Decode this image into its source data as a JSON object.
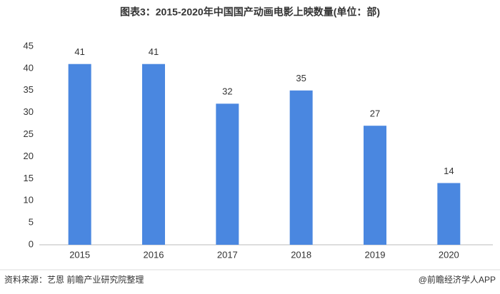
{
  "chart_data": {
    "type": "bar",
    "title": "图表3：2015-2020年中国国产动画电影上映数量(单位：部)",
    "categories": [
      "2015",
      "2016",
      "2017",
      "2018",
      "2019",
      "2020"
    ],
    "values": [
      41,
      41,
      32,
      35,
      27,
      14
    ],
    "color": "#4a87e0",
    "ylim": [
      0,
      45
    ],
    "yticks": [
      0,
      5,
      10,
      15,
      20,
      25,
      30,
      35,
      40,
      45
    ],
    "grid": false,
    "source": "资料来源：艺恩 前瞻产业研究院整理",
    "credit": "@前瞻经济学人APP"
  }
}
